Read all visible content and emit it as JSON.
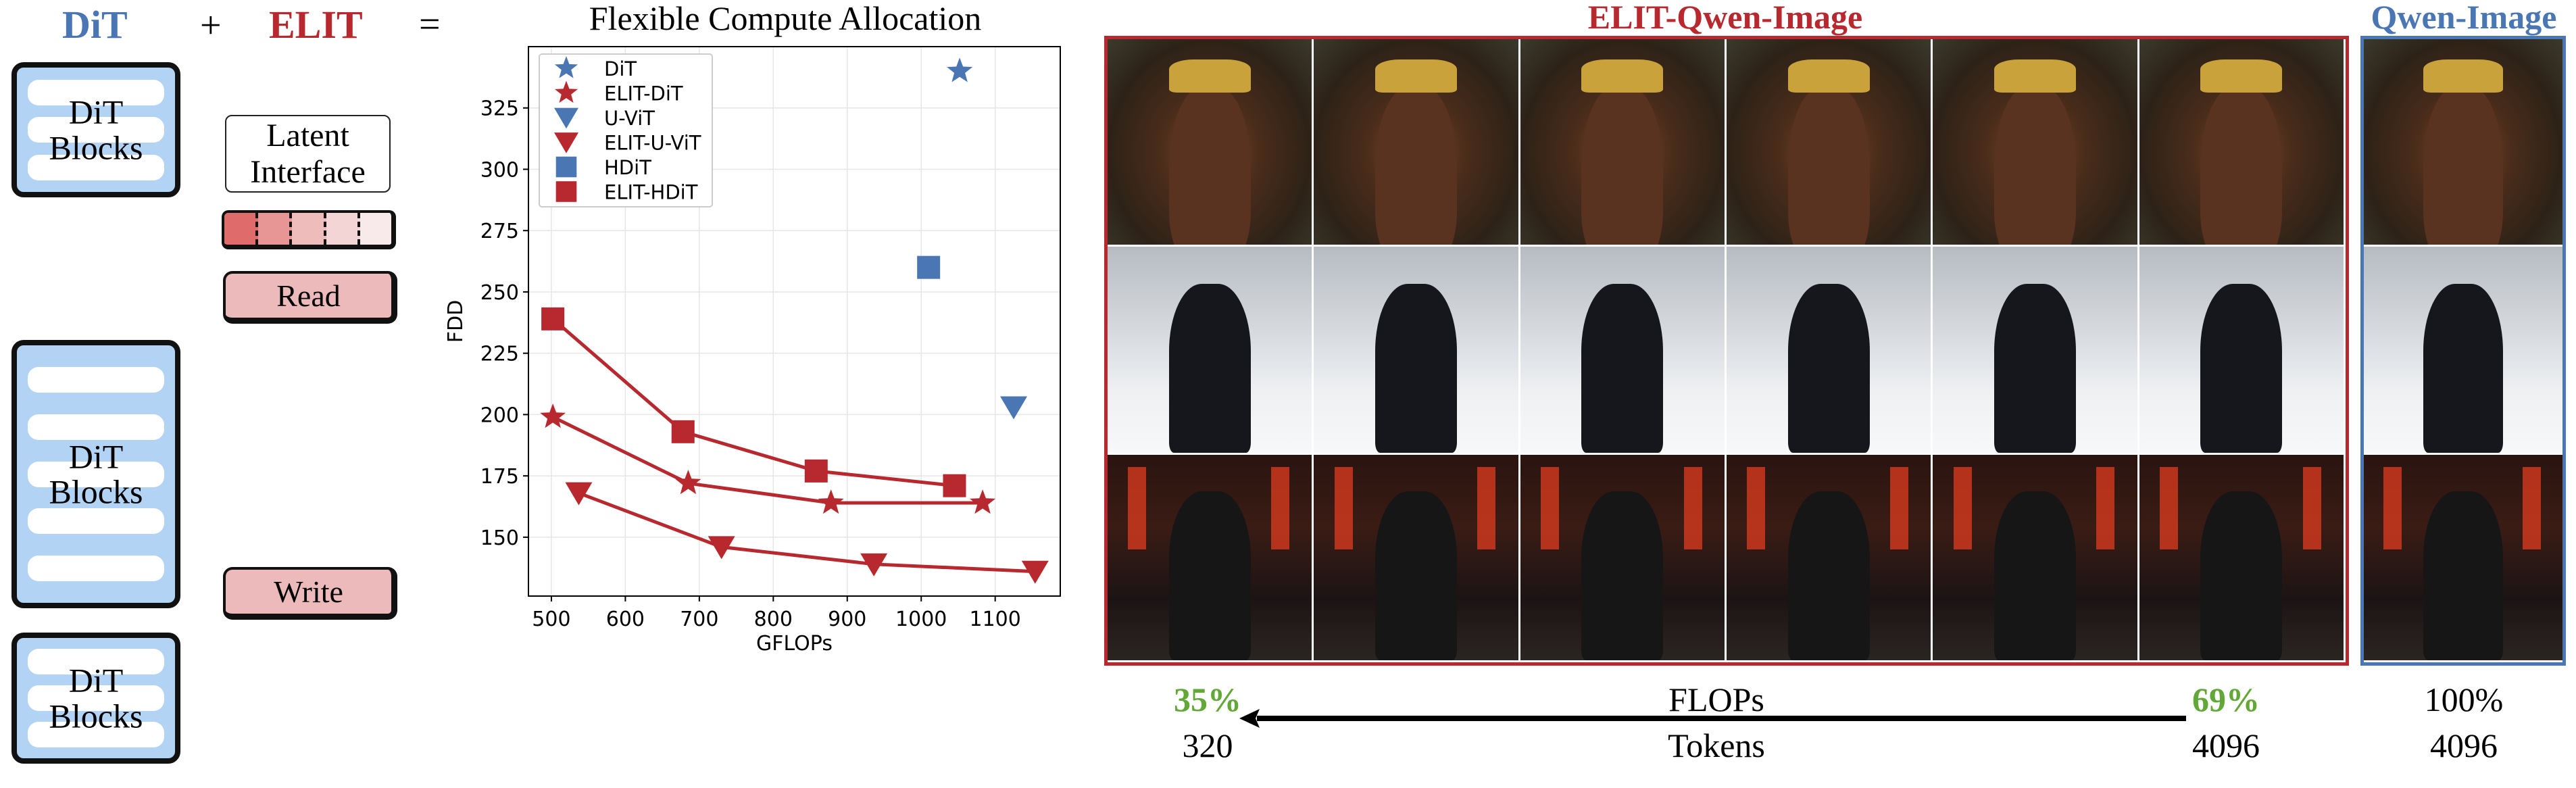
{
  "diagram": {
    "dit_title": "DiT",
    "plus": "+",
    "elit_title": "ELIT",
    "equals": "=",
    "dit_blocks_label_line1": "DiT",
    "dit_blocks_label_line2": "Blocks",
    "latent_interface_line1": "Latent",
    "latent_interface_line2": "Interface",
    "read_label": "Read",
    "write_label": "Write",
    "gradient_colors": [
      "#e06b6b",
      "#e79595",
      "#efbcbc",
      "#f4d5d5",
      "#f8eaea"
    ]
  },
  "colors": {
    "blue": "#4a77b4",
    "red": "#b8292f",
    "green": "#62a836"
  },
  "chart_data": {
    "type": "scatter",
    "title": "Flexible Compute Allocation",
    "xlabel": "GFLOPs",
    "ylabel": "FDD",
    "xlim": [
      469,
      1188
    ],
    "ylim": [
      126,
      350
    ],
    "xticks": [
      500,
      600,
      700,
      800,
      900,
      1000,
      1100
    ],
    "yticks": [
      150,
      175,
      200,
      225,
      250,
      275,
      300,
      325
    ],
    "grid": true,
    "legend_position": "top-left",
    "series": [
      {
        "name": "DiT",
        "marker": "star",
        "color": "#4a77b4",
        "line": false,
        "x": [
          1052
        ],
        "y": [
          340
        ]
      },
      {
        "name": "ELIT-DiT",
        "marker": "star",
        "color": "#b8292f",
        "line": true,
        "x": [
          502,
          685,
          878,
          1083
        ],
        "y": [
          199,
          172,
          164,
          164
        ]
      },
      {
        "name": "U-ViT",
        "marker": "triangle-down",
        "color": "#4a77b4",
        "line": false,
        "x": [
          1125
        ],
        "y": [
          203
        ]
      },
      {
        "name": "ELIT-U-ViT",
        "marker": "triangle-down",
        "color": "#b8292f",
        "line": true,
        "x": [
          537,
          730,
          936,
          1154
        ],
        "y": [
          168,
          146,
          139,
          136
        ]
      },
      {
        "name": "HDiT",
        "marker": "square",
        "color": "#4a77b4",
        "line": false,
        "x": [
          1010
        ],
        "y": [
          260
        ]
      },
      {
        "name": "ELIT-HDiT",
        "marker": "square",
        "color": "#b8292f",
        "line": true,
        "x": [
          502,
          678,
          858,
          1045
        ],
        "y": [
          239,
          193,
          177,
          171
        ]
      }
    ]
  },
  "gallery": {
    "elit_title": "ELIT-Qwen-Image",
    "qwen_title": "Qwen-Image",
    "rows": [
      "portrait",
      "arctic-ocean-officer",
      "night-street"
    ],
    "elit_columns": 6
  },
  "footer": {
    "elit_low_flops": "35%",
    "elit_low_tokens": "320",
    "flops_label": "FLOPs",
    "tokens_label": "Tokens",
    "elit_high_flops": "69%",
    "elit_high_tokens": "4096",
    "qwen_flops": "100%",
    "qwen_tokens": "4096"
  }
}
